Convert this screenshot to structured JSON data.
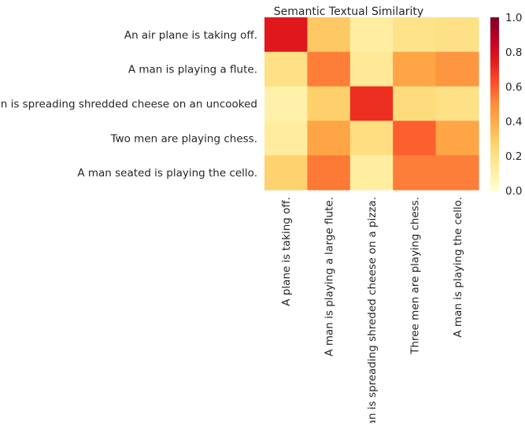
{
  "chart_data": {
    "type": "heatmap",
    "title": "Semantic Textual Similarity",
    "row_labels": [
      "An air plane is taking off.",
      "A man is playing a flute.",
      "A man is spreading shredded cheese on an uncooked",
      "Two men are playing chess.",
      "A man seated is playing the cello."
    ],
    "col_labels": [
      "A plane is taking off.",
      "A man is playing a large flute.",
      "A man is spreading shreded cheese on a pizza.",
      "Three men are playing chess.",
      "A man is playing the cello."
    ],
    "values": [
      [
        0.76,
        0.3,
        0.12,
        0.19,
        0.2
      ],
      [
        0.2,
        0.53,
        0.15,
        0.42,
        0.47
      ],
      [
        0.1,
        0.28,
        0.7,
        0.23,
        0.2
      ],
      [
        0.13,
        0.42,
        0.22,
        0.59,
        0.42
      ],
      [
        0.27,
        0.54,
        0.12,
        0.53,
        0.53
      ]
    ],
    "colormap": "YlOrRd",
    "color_stops": [
      "#ffffcc",
      "#ffeda0",
      "#fed976",
      "#feb24c",
      "#fd8d3c",
      "#fc4e2a",
      "#e31a1c",
      "#bd0026",
      "#800026"
    ],
    "colorbar": {
      "vmin": 0.0,
      "vmax": 1.0,
      "ticks": [
        "0.0",
        "0.2",
        "0.4",
        "0.6",
        "0.8",
        "1.0"
      ]
    }
  }
}
